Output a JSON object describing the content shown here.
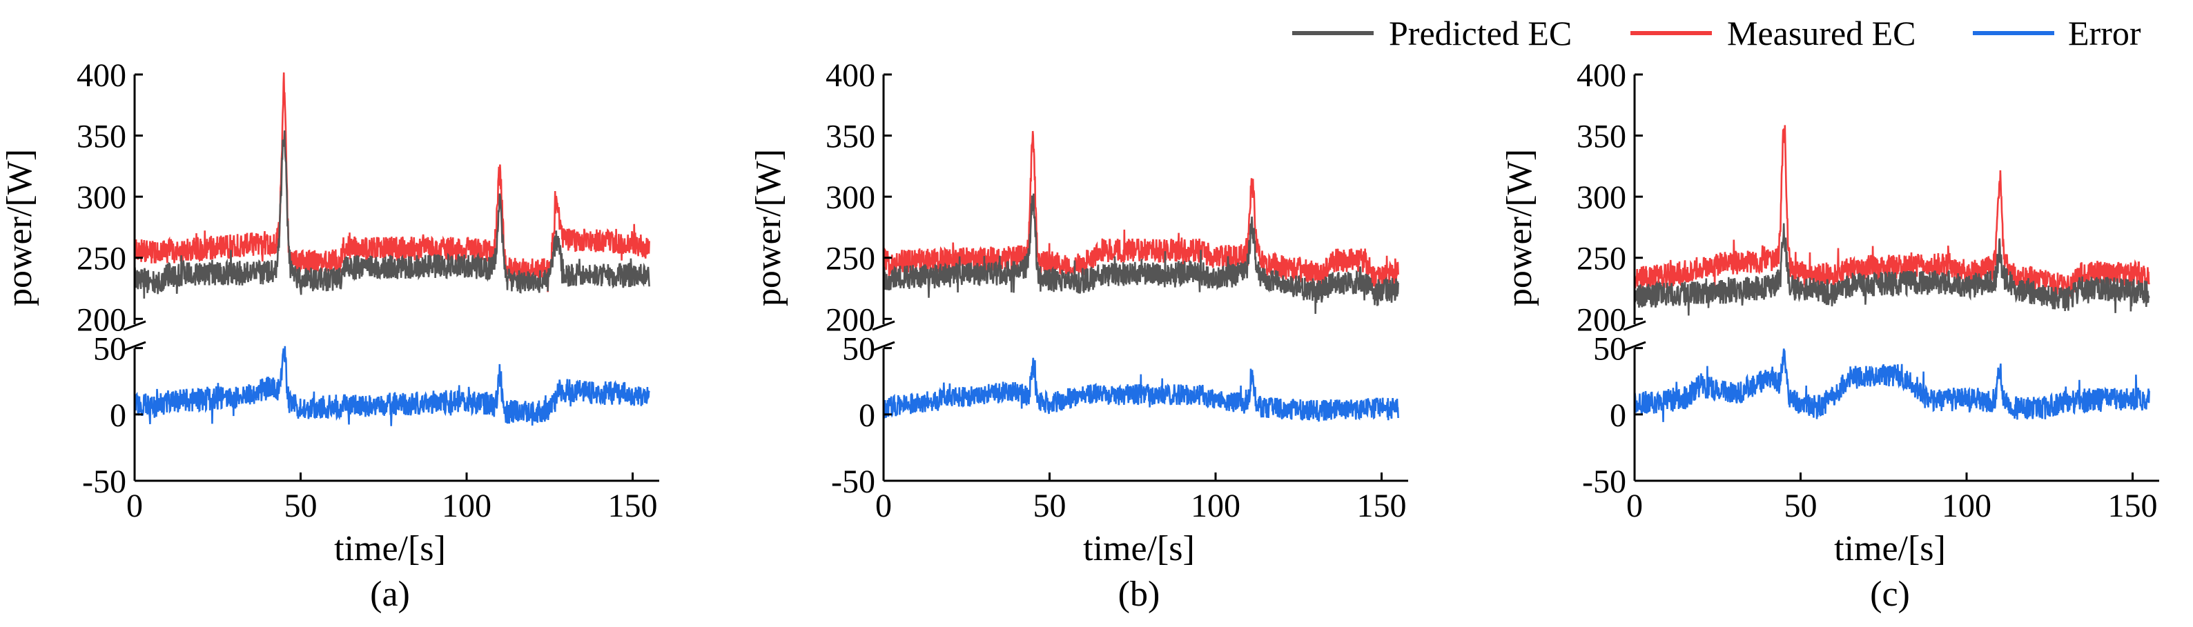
{
  "legend": [
    {
      "label": "Predicted EC",
      "color": "#555555"
    },
    {
      "label": "Measured EC",
      "color": "#f23c3c"
    },
    {
      "label": "Error",
      "color": "#1f6fe6"
    }
  ],
  "chart_data": [
    {
      "type": "line",
      "panel_label": "(a)",
      "xlabel": "time/[s]",
      "ylabel": "power/[W]",
      "xlim": [
        0,
        158
      ],
      "xticks": [
        0,
        50,
        100,
        150
      ],
      "upper": {
        "ylim": [
          190,
          400
        ],
        "yticks": [
          200,
          250,
          300,
          350,
          400
        ]
      },
      "lower": {
        "ylim": [
          -50,
          55
        ],
        "yticks": [
          -50,
          0,
          50
        ]
      },
      "series": [
        {
          "name": "Predicted EC",
          "baseline": [
            [
              0,
              235
            ],
            [
              7,
              228
            ],
            [
              10,
              236
            ],
            [
              40,
              238
            ],
            [
              44,
              240
            ],
            [
              46,
              235
            ],
            [
              50,
              232
            ],
            [
              62,
              232
            ],
            [
              63,
              242
            ],
            [
              100,
              243
            ],
            [
              107,
              242
            ],
            [
              110,
              240
            ],
            [
              113,
              230
            ],
            [
              125,
              230
            ],
            [
              128,
              236
            ],
            [
              150,
              236
            ],
            [
              155,
              236
            ]
          ],
          "spikes": [
            [
              45,
              1.2,
              110
            ],
            [
              110,
              1.0,
              55
            ],
            [
              127,
              1.5,
              30
            ]
          ],
          "noise": 10
        },
        {
          "name": "Measured EC",
          "baseline": [
            [
              0,
              258
            ],
            [
              7,
              253
            ],
            [
              10,
              255
            ],
            [
              40,
              262
            ],
            [
              44,
              264
            ],
            [
              46,
              250
            ],
            [
              50,
              246
            ],
            [
              62,
              247
            ],
            [
              63,
              258
            ],
            [
              100,
              257
            ],
            [
              107,
              256
            ],
            [
              110,
              252
            ],
            [
              113,
              240
            ],
            [
              125,
              240
            ],
            [
              128,
              265
            ],
            [
              150,
              262
            ],
            [
              155,
              258
            ]
          ],
          "spikes": [
            [
              45,
              0.9,
              135
            ],
            [
              110,
              1.0,
              68
            ],
            [
              127,
              1.2,
              35
            ]
          ],
          "noise": 10
        },
        {
          "name": "Error",
          "baseline": [
            [
              0,
              8
            ],
            [
              7,
              6
            ],
            [
              10,
              10
            ],
            [
              35,
              14
            ],
            [
              40,
              20
            ],
            [
              44,
              18
            ],
            [
              47,
              8
            ],
            [
              50,
              5
            ],
            [
              100,
              10
            ],
            [
              107,
              8
            ],
            [
              110,
              5
            ],
            [
              112,
              2
            ],
            [
              125,
              2
            ],
            [
              128,
              18
            ],
            [
              150,
              15
            ],
            [
              155,
              12
            ]
          ],
          "spikes": [
            [
              45,
              0.8,
              35
            ],
            [
              110,
              0.8,
              25
            ]
          ],
          "noise": 9
        }
      ]
    },
    {
      "type": "line",
      "panel_label": "(b)",
      "xlabel": "time/[s]",
      "ylabel": "power/[W]",
      "xlim": [
        0,
        158
      ],
      "xticks": [
        0,
        50,
        100,
        150
      ],
      "upper": {
        "ylim": [
          190,
          400
        ],
        "yticks": [
          200,
          250,
          300,
          350,
          400
        ]
      },
      "lower": {
        "ylim": [
          -50,
          55
        ],
        "yticks": [
          -50,
          0,
          50
        ]
      },
      "series": [
        {
          "name": "Predicted EC",
          "baseline": [
            [
              0,
              233
            ],
            [
              40,
              238
            ],
            [
              44,
              244
            ],
            [
              47,
              232
            ],
            [
              60,
              230
            ],
            [
              65,
              236
            ],
            [
              95,
              238
            ],
            [
              100,
              232
            ],
            [
              108,
              238
            ],
            [
              112,
              240
            ],
            [
              115,
              232
            ],
            [
              125,
              225
            ],
            [
              132,
              222
            ],
            [
              135,
              230
            ],
            [
              145,
              230
            ],
            [
              148,
              220
            ],
            [
              155,
              225
            ]
          ],
          "spikes": [
            [
              45,
              1.0,
              55
            ],
            [
              111,
              1.0,
              35
            ]
          ],
          "noise": 10
        },
        {
          "name": "Measured EC",
          "baseline": [
            [
              0,
              246
            ],
            [
              40,
              250
            ],
            [
              44,
              252
            ],
            [
              47,
              246
            ],
            [
              60,
              244
            ],
            [
              65,
              256
            ],
            [
              95,
              256
            ],
            [
              100,
              250
            ],
            [
              108,
              252
            ],
            [
              112,
              256
            ],
            [
              115,
              245
            ],
            [
              125,
              240
            ],
            [
              132,
              236
            ],
            [
              135,
              248
            ],
            [
              145,
              248
            ],
            [
              148,
              232
            ],
            [
              155,
              238
            ]
          ],
          "spikes": [
            [
              45,
              0.9,
              100
            ],
            [
              111,
              1.0,
              55
            ]
          ],
          "noise": 10
        },
        {
          "name": "Error",
          "baseline": [
            [
              0,
              5
            ],
            [
              15,
              10
            ],
            [
              20,
              12
            ],
            [
              30,
              15
            ],
            [
              40,
              18
            ],
            [
              45,
              12
            ],
            [
              50,
              8
            ],
            [
              60,
              15
            ],
            [
              95,
              15
            ],
            [
              100,
              12
            ],
            [
              110,
              8
            ],
            [
              115,
              5
            ],
            [
              130,
              3
            ],
            [
              155,
              5
            ]
          ],
          "spikes": [
            [
              45,
              0.8,
              25
            ],
            [
              111,
              0.8,
              25
            ]
          ],
          "noise": 8
        }
      ]
    },
    {
      "type": "line",
      "panel_label": "(c)",
      "xlabel": "time/[s]",
      "ylabel": "power/[W]",
      "xlim": [
        0,
        158
      ],
      "xticks": [
        0,
        50,
        100,
        150
      ],
      "upper": {
        "ylim": [
          190,
          400
        ],
        "yticks": [
          200,
          250,
          300,
          350,
          400
        ]
      },
      "lower": {
        "ylim": [
          -50,
          55
        ],
        "yticks": [
          -50,
          0,
          50
        ]
      },
      "series": [
        {
          "name": "Predicted EC",
          "baseline": [
            [
              0,
              218
            ],
            [
              10,
              220
            ],
            [
              25,
              222
            ],
            [
              40,
              226
            ],
            [
              44,
              230
            ],
            [
              48,
              225
            ],
            [
              60,
              222
            ],
            [
              65,
              228
            ],
            [
              95,
              230
            ],
            [
              100,
              226
            ],
            [
              108,
              230
            ],
            [
              112,
              232
            ],
            [
              115,
              225
            ],
            [
              125,
              218
            ],
            [
              130,
              215
            ],
            [
              135,
              226
            ],
            [
              155,
              222
            ]
          ],
          "spikes": [
            [
              45,
              1.0,
              40
            ],
            [
              110,
              0.9,
              25
            ]
          ],
          "noise": 10
        },
        {
          "name": "Measured EC",
          "baseline": [
            [
              0,
              233
            ],
            [
              10,
              235
            ],
            [
              25,
              245
            ],
            [
              40,
              248
            ],
            [
              44,
              250
            ],
            [
              48,
              238
            ],
            [
              60,
              236
            ],
            [
              65,
              242
            ],
            [
              95,
              244
            ],
            [
              100,
              238
            ],
            [
              108,
              242
            ],
            [
              112,
              244
            ],
            [
              115,
              236
            ],
            [
              125,
              230
            ],
            [
              130,
              225
            ],
            [
              135,
              238
            ],
            [
              155,
              236
            ]
          ],
          "spikes": [
            [
              45,
              0.9,
              115
            ],
            [
              110,
              0.9,
              72
            ]
          ],
          "noise": 10
        },
        {
          "name": "Error",
          "baseline": [
            [
              0,
              8
            ],
            [
              15,
              12
            ],
            [
              20,
              22
            ],
            [
              30,
              15
            ],
            [
              35,
              22
            ],
            [
              42,
              28
            ],
            [
              47,
              10
            ],
            [
              55,
              5
            ],
            [
              60,
              15
            ],
            [
              65,
              28
            ],
            [
              80,
              30
            ],
            [
              90,
              10
            ],
            [
              100,
              12
            ],
            [
              110,
              10
            ],
            [
              115,
              5
            ],
            [
              125,
              5
            ],
            [
              130,
              10
            ],
            [
              155,
              12
            ]
          ],
          "spikes": [
            [
              45,
              0.8,
              30
            ],
            [
              110,
              0.8,
              25
            ]
          ],
          "noise": 9
        }
      ]
    }
  ]
}
